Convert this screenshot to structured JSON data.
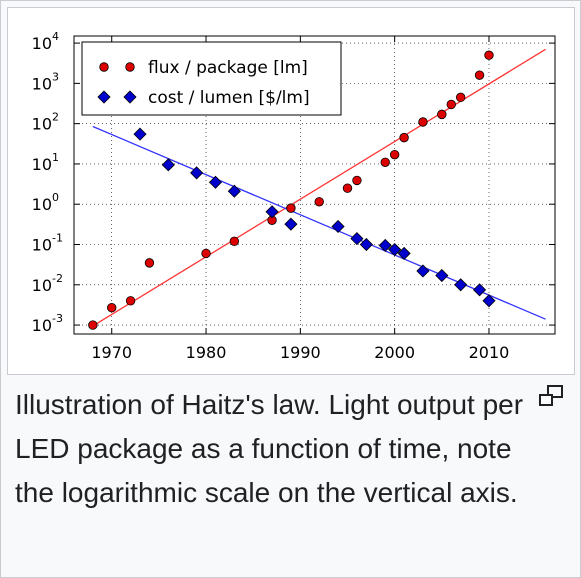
{
  "caption": "Illustration of Haitz's law. Light output per LED package as a function of time, note the logarithmic scale on the vertical axis.",
  "icons": {
    "magnify": "magnify-clip-icon"
  },
  "chart_data": {
    "type": "scatter",
    "title": "",
    "xlabel": "",
    "ylabel": "",
    "yscale": "log",
    "xlim": [
      1966,
      2017
    ],
    "ylim": [
      0.0006,
      15000
    ],
    "x_ticks": [
      1970,
      1980,
      1990,
      2000,
      2010
    ],
    "y_ticks": [
      {
        "value": 0.001,
        "base": "10",
        "exp": "-3"
      },
      {
        "value": 0.01,
        "base": "10",
        "exp": "-2"
      },
      {
        "value": 0.1,
        "base": "10",
        "exp": "-1"
      },
      {
        "value": 1,
        "base": "10",
        "exp": "0"
      },
      {
        "value": 10,
        "base": "10",
        "exp": "1"
      },
      {
        "value": 100,
        "base": "10",
        "exp": "2"
      },
      {
        "value": 1000,
        "base": "10",
        "exp": "3"
      },
      {
        "value": 10000,
        "base": "10",
        "exp": "4"
      }
    ],
    "grid": true,
    "legend_position": "top-left",
    "series": [
      {
        "name": "flux / package [lm]",
        "marker": "circle",
        "color": "#dd0000",
        "points": [
          [
            1968,
            0.001
          ],
          [
            1970,
            0.0027
          ],
          [
            1972,
            0.004
          ],
          [
            1974,
            0.035
          ],
          [
            1980,
            0.06
          ],
          [
            1983,
            0.12
          ],
          [
            1987,
            0.4
          ],
          [
            1989,
            0.8
          ],
          [
            1992,
            1.15
          ],
          [
            1995,
            2.5
          ],
          [
            1996,
            3.9
          ],
          [
            1999,
            11
          ],
          [
            2000,
            17
          ],
          [
            2001,
            45
          ],
          [
            2003,
            110
          ],
          [
            2005,
            170
          ],
          [
            2006,
            300
          ],
          [
            2007,
            450
          ],
          [
            2009,
            1600
          ],
          [
            2010,
            5000
          ]
        ],
        "trend": [
          [
            1968,
            0.00095
          ],
          [
            2016,
            7000
          ]
        ],
        "trend_color": "#ff3333"
      },
      {
        "name": "cost / lumen [$/lm]",
        "marker": "diamond",
        "color": "#0000cc",
        "points": [
          [
            1973,
            55
          ],
          [
            1976,
            9.5
          ],
          [
            1979,
            6
          ],
          [
            1981,
            3.5
          ],
          [
            1983,
            2.1
          ],
          [
            1987,
            0.65
          ],
          [
            1989,
            0.32
          ],
          [
            1994,
            0.28
          ],
          [
            1996,
            0.14
          ],
          [
            1997,
            0.1
          ],
          [
            1999,
            0.095
          ],
          [
            2000,
            0.075
          ],
          [
            2001,
            0.06
          ],
          [
            2003,
            0.022
          ],
          [
            2005,
            0.017
          ],
          [
            2007,
            0.01
          ],
          [
            2009,
            0.0075
          ],
          [
            2010,
            0.004
          ]
        ],
        "trend": [
          [
            1968,
            85
          ],
          [
            2016,
            0.0014
          ]
        ],
        "trend_color": "#3333ff"
      }
    ]
  }
}
